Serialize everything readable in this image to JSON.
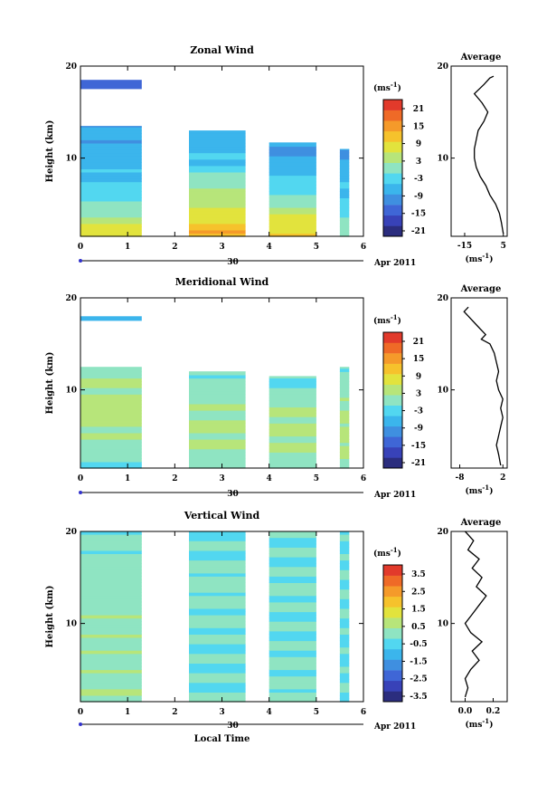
{
  "panels": [
    {
      "title": "Zonal Wind",
      "unit": "(ms",
      "unit_sup": "-1",
      "unit_close": ")",
      "ylabel": "Height (km)",
      "x_ticks": [
        "0",
        "1",
        "2",
        "3",
        "4",
        "5",
        "6"
      ],
      "y_ticks": [
        "10",
        "20"
      ],
      "date_day": "30",
      "date_month": "Apr 2011",
      "cbar_ticks": [
        "21",
        "15",
        "9",
        "3",
        "-3",
        "-9",
        "-15",
        "-21"
      ],
      "avg_title": "Average",
      "avg_xticks": [
        "-15",
        "5"
      ],
      "avg_yticks": [
        "10",
        "20"
      ],
      "avg_unit": "(ms",
      "avg_unit_sup": "-1",
      "avg_unit_close": ")"
    },
    {
      "title": "Meridional Wind",
      "unit": "(ms",
      "unit_sup": "-1",
      "unit_close": ")",
      "ylabel": "Height (km)",
      "x_ticks": [
        "0",
        "1",
        "2",
        "3",
        "4",
        "5",
        "6"
      ],
      "y_ticks": [
        "10",
        "20"
      ],
      "date_day": "30",
      "date_month": "Apr 2011",
      "cbar_ticks": [
        "21",
        "15",
        "9",
        "3",
        "-3",
        "-9",
        "-15",
        "-21"
      ],
      "avg_title": "Average",
      "avg_xticks": [
        "-8",
        "2"
      ],
      "avg_yticks": [
        "10",
        "20"
      ],
      "avg_unit": "(ms",
      "avg_unit_sup": "-1",
      "avg_unit_close": ")"
    },
    {
      "title": "Vertical Wind",
      "unit": "(ms",
      "unit_sup": "-1",
      "unit_close": ")",
      "ylabel": "Height (km)",
      "x_ticks": [
        "0",
        "1",
        "2",
        "3",
        "4",
        "5",
        "6"
      ],
      "y_ticks": [
        "10",
        "20"
      ],
      "date_day": "30",
      "date_month": "Apr 2011",
      "cbar_ticks": [
        "3.5",
        "2.5",
        "1.5",
        "0.5",
        "-0.5",
        "-1.5",
        "-2.5",
        "-3.5"
      ],
      "avg_title": "Average",
      "avg_xticks": [
        "0.0",
        "0.2"
      ],
      "avg_yticks": [
        "10",
        "20"
      ],
      "avg_unit": "(ms",
      "avg_unit_sup": "-1",
      "avg_unit_close": ")",
      "xlabel": "Local Time"
    }
  ],
  "colors": {
    "colormap": [
      "#2b2d7e",
      "#3842b8",
      "#3f66d6",
      "#3f8fe0",
      "#3bb5ec",
      "#52d7f0",
      "#8fe4c2",
      "#b7e57a",
      "#e2e33d",
      "#f6c22c",
      "#f59a2a",
      "#ef6a27",
      "#e23a2b"
    ]
  },
  "chart_data": [
    {
      "type": "heatmap",
      "title": "Zonal Wind",
      "ylabel": "Height (km)",
      "xlim": [
        0,
        6
      ],
      "ylim": [
        1.5,
        20
      ],
      "clim": [
        -24,
        24
      ],
      "segments": [
        {
          "t0": 0.0,
          "t1": 1.3,
          "top_km": 13.5,
          "profile_km": [
            2,
            4,
            6,
            8,
            10,
            12,
            13.5
          ],
          "profile_val": [
            7,
            2,
            -3,
            -6,
            -8,
            -8,
            -9
          ]
        },
        {
          "t0": 2.3,
          "t1": 3.5,
          "top_km": 13.0,
          "profile_km": [
            2,
            4,
            6,
            8,
            10,
            12,
            13
          ],
          "profile_val": [
            12,
            8,
            3,
            -2,
            -6,
            -8,
            -9
          ]
        },
        {
          "t0": 4.0,
          "t1": 5.0,
          "top_km": 11.7,
          "profile_km": [
            2,
            4,
            6,
            8,
            10,
            11.7
          ],
          "profile_val": [
            8,
            5,
            -2,
            -6,
            -9,
            -10
          ]
        },
        {
          "t0": 5.5,
          "t1": 5.7,
          "top_km": 11.0,
          "profile_km": [
            2,
            4,
            6,
            8,
            10,
            11
          ],
          "profile_val": [
            1,
            -3,
            -5,
            -7,
            -9,
            -10
          ]
        }
      ],
      "high_layer": {
        "km": [
          17.5,
          18.5
        ],
        "value": -14
      },
      "profile": {
        "x_label_ticks": [
          -15,
          5
        ],
        "xlim": [
          -22,
          7
        ],
        "points": [
          [
            5,
            1.8
          ],
          [
            4,
            3
          ],
          [
            3,
            4
          ],
          [
            1,
            5
          ],
          [
            -2,
            6
          ],
          [
            -4,
            7
          ],
          [
            -7,
            8
          ],
          [
            -9,
            9
          ],
          [
            -10,
            10
          ],
          [
            -10,
            11
          ],
          [
            -9,
            12
          ],
          [
            -8,
            13
          ],
          [
            -5,
            14
          ],
          [
            -3,
            15
          ],
          [
            -6,
            16
          ],
          [
            -10,
            17
          ],
          [
            -5,
            18
          ],
          [
            -2,
            18.7
          ],
          [
            0,
            18.9
          ]
        ]
      }
    },
    {
      "type": "heatmap",
      "title": "Meridional Wind",
      "ylabel": "Height (km)",
      "xlim": [
        0,
        6
      ],
      "ylim": [
        1.5,
        20
      ],
      "clim": [
        -24,
        24
      ],
      "segments": [
        {
          "t0": 0.0,
          "t1": 1.3,
          "top_km": 12.5,
          "profile_km": [
            2,
            4,
            6,
            8,
            10,
            12.5
          ],
          "profile_val": [
            -2,
            0,
            3,
            4,
            2,
            0
          ]
        },
        {
          "t0": 2.3,
          "t1": 3.5,
          "top_km": 12.0,
          "profile_km": [
            2,
            4,
            6,
            8,
            10,
            12
          ],
          "profile_val": [
            -1,
            2,
            3,
            2,
            0,
            -1
          ]
        },
        {
          "t0": 4.0,
          "t1": 5.0,
          "top_km": 11.5,
          "profile_km": [
            2,
            4,
            6,
            8,
            10,
            11.5
          ],
          "profile_val": [
            0,
            2,
            3,
            1,
            -1,
            -2
          ]
        },
        {
          "t0": 5.5,
          "t1": 5.7,
          "top_km": 12.5,
          "profile_km": [
            2,
            4,
            6,
            8,
            10,
            12.5
          ],
          "profile_val": [
            2,
            3,
            3,
            2,
            0,
            -1
          ]
        }
      ],
      "high_layer": {
        "km": [
          17.5,
          18.0
        ],
        "value": -6
      },
      "profile": {
        "x_label_ticks": [
          -8,
          2
        ],
        "xlim": [
          -10,
          3
        ],
        "points": [
          [
            1.5,
            1.8
          ],
          [
            1,
            3
          ],
          [
            0.5,
            4
          ],
          [
            1,
            5
          ],
          [
            1.5,
            6
          ],
          [
            2,
            7
          ],
          [
            1.5,
            8
          ],
          [
            2,
            9
          ],
          [
            1,
            10
          ],
          [
            0.5,
            11
          ],
          [
            1,
            12
          ],
          [
            0.5,
            13
          ],
          [
            0,
            14
          ],
          [
            -1,
            15
          ],
          [
            -3,
            15.5
          ],
          [
            -2,
            16
          ],
          [
            -4,
            17
          ],
          [
            -6,
            18
          ],
          [
            -7,
            18.5
          ],
          [
            -6,
            19
          ]
        ]
      }
    },
    {
      "type": "heatmap",
      "title": "Vertical Wind",
      "ylabel": "Height (km)",
      "xlabel": "Local Time",
      "xlim": [
        0,
        6
      ],
      "ylim": [
        1.5,
        20
      ],
      "clim": [
        -4,
        4
      ],
      "segments": [
        {
          "t0": 0.0,
          "t1": 1.3,
          "top_km": 20,
          "profile_km": [
            2,
            6,
            10,
            14,
            18,
            20
          ],
          "profile_val": [
            0.2,
            0.1,
            0.1,
            0.0,
            -0.1,
            -0.2
          ]
        },
        {
          "t0": 2.3,
          "t1": 3.5,
          "top_km": 20,
          "profile_km": [
            2,
            6,
            10,
            14,
            18,
            20
          ],
          "profile_val": [
            -0.3,
            -0.4,
            -0.2,
            -0.1,
            -0.3,
            -0.4
          ]
        },
        {
          "t0": 4.0,
          "t1": 5.0,
          "top_km": 20,
          "profile_km": [
            2,
            6,
            10,
            14,
            18,
            20
          ],
          "profile_val": [
            -0.1,
            -0.2,
            -0.3,
            -0.2,
            -0.3,
            -0.4
          ]
        },
        {
          "t0": 5.5,
          "t1": 5.7,
          "top_km": 20,
          "profile_km": [
            2,
            6,
            10,
            14,
            18,
            20
          ],
          "profile_val": [
            -0.3,
            -0.4,
            -0.3,
            -0.3,
            -0.4,
            -0.4
          ]
        }
      ],
      "profile": {
        "x_label_ticks": [
          0.0,
          0.2
        ],
        "xlim": [
          -0.1,
          0.3
        ],
        "points": [
          [
            0.0,
            2
          ],
          [
            0.02,
            3
          ],
          [
            0.0,
            4
          ],
          [
            0.04,
            5
          ],
          [
            0.1,
            6
          ],
          [
            0.05,
            7
          ],
          [
            0.12,
            8
          ],
          [
            0.04,
            9
          ],
          [
            0.0,
            10
          ],
          [
            0.05,
            11
          ],
          [
            0.1,
            12
          ],
          [
            0.15,
            13
          ],
          [
            0.08,
            14
          ],
          [
            0.12,
            15
          ],
          [
            0.05,
            16
          ],
          [
            0.1,
            17
          ],
          [
            0.02,
            18
          ],
          [
            0.06,
            19
          ],
          [
            0.0,
            20
          ]
        ]
      }
    }
  ]
}
